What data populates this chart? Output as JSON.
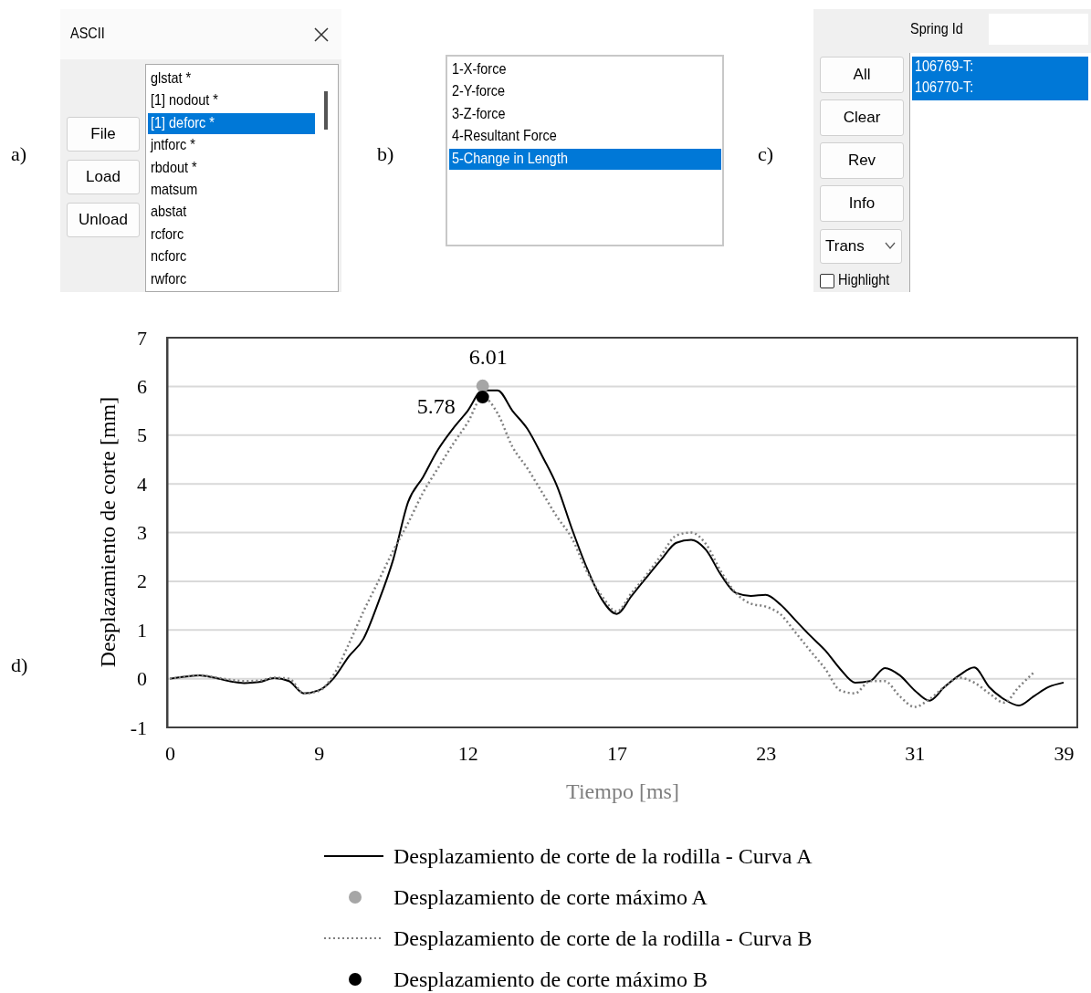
{
  "chart_data": [
    {
      "type": "other",
      "title": "ASCII",
      "annotations": [
        "a)",
        "File",
        "Load",
        "Unload",
        "glstat *",
        "[1] nodout *",
        "[1] deforc *",
        "jntforc *",
        "rbdout *",
        "matsum",
        "abstat",
        "rcforc",
        "ncforc",
        "rwforc"
      ]
    },
    {
      "type": "other",
      "annotations": [
        "b)",
        "1-X-force",
        "2-Y-force",
        "3-Z-force",
        "4-Resultant Force",
        "5-Change in Length"
      ]
    },
    {
      "type": "other",
      "title": "Spring Id",
      "annotations": [
        "c)",
        "All",
        "Clear",
        "Rev",
        "Info",
        "Trans",
        "Highlight",
        "106769-T:",
        "106770-T:"
      ]
    },
    {
      "type": "line",
      "xlabel": "Tiempo [ms]",
      "ylabel": "Desplazamiento de corte [mm]",
      "annotations": [
        "d)"
      ],
      "categories": [
        "0",
        null,
        null,
        null,
        null,
        null,
        null,
        null,
        null,
        null,
        "9",
        null,
        null,
        null,
        null,
        null,
        null,
        null,
        null,
        null,
        "12",
        null,
        null,
        null,
        null,
        null,
        null,
        null,
        null,
        null,
        "17",
        null,
        null,
        null,
        null,
        null,
        null,
        null,
        null,
        null,
        "23",
        null,
        null,
        null,
        null,
        null,
        null,
        null,
        null,
        null,
        "31",
        null,
        null,
        null,
        null,
        null,
        null,
        null,
        null,
        null,
        "39"
      ],
      "ylim": [
        -1,
        7
      ],
      "yticks": [
        -1,
        0,
        1,
        2,
        3,
        4,
        5,
        6,
        7
      ],
      "grid": "y",
      "legend": "bottom",
      "series": [
        {
          "name": "Desplazamiento de corte de la rodilla - Curva A",
          "type": "line",
          "line_style": "solid",
          "color": "#000000",
          "values": [
            0,
            0.04,
            0.07,
            0.02,
            -0.05,
            -0.09,
            -0.07,
            0.01,
            -0.05,
            -0.3,
            -0.24,
            0.01,
            0.45,
            0.82,
            1.57,
            2.45,
            3.63,
            4.14,
            4.7,
            5.13,
            5.5,
            5.92,
            5.92,
            5.5,
            5.13,
            4.57,
            3.95,
            3.07,
            2.27,
            1.63,
            1.33,
            1.7,
            2.08,
            2.45,
            2.79,
            2.85,
            2.64,
            2.13,
            1.76,
            1.7,
            1.72,
            1.52,
            1.2,
            0.88,
            0.58,
            0.2,
            -0.08,
            -0.05,
            0.22,
            0.07,
            -0.24,
            -0.45,
            -0.17,
            0.07,
            0.23,
            -0.17,
            -0.42,
            -0.55,
            -0.36,
            -0.17,
            -0.08
          ]
        },
        {
          "name": "Desplazamiento de corte máximo A",
          "type": "scatter",
          "marker": "circle",
          "color": "#a6a6a6",
          "values": [
            null,
            null,
            null,
            null,
            null,
            null,
            null,
            null,
            null,
            null,
            null,
            null,
            null,
            null,
            null,
            null,
            null,
            null,
            null,
            null,
            null,
            6.01,
            null,
            null,
            null,
            null,
            null,
            null,
            null,
            null,
            null,
            null,
            null,
            null,
            null,
            null,
            null,
            null,
            null,
            null,
            null,
            null,
            null,
            null,
            null,
            null,
            null,
            null,
            null,
            null,
            null,
            null,
            null,
            null,
            null,
            null,
            null,
            null,
            null,
            null,
            null
          ],
          "value_labels": [
            null,
            null,
            null,
            null,
            null,
            null,
            null,
            null,
            null,
            null,
            null,
            null,
            null,
            null,
            null,
            null,
            null,
            null,
            null,
            null,
            null,
            "6.01",
            null,
            null,
            null,
            null,
            null,
            null,
            null,
            null,
            null,
            null,
            null,
            null,
            null,
            null,
            null,
            null,
            null,
            null,
            null,
            null,
            null,
            null,
            null,
            null,
            null,
            null,
            null,
            null,
            null,
            null,
            null,
            null,
            null,
            null,
            null,
            null,
            null,
            null,
            null
          ]
        },
        {
          "name": "Desplazamiento de corte de la rodilla - Curva B",
          "type": "line",
          "line_style": "dotted",
          "color": "#808080",
          "values": [
            0,
            0.04,
            0.07,
            0.03,
            -0.02,
            -0.05,
            -0.04,
            0.02,
            0,
            -0.3,
            -0.25,
            0.08,
            0.7,
            1.38,
            2.0,
            2.63,
            3.2,
            3.82,
            4.32,
            4.81,
            5.26,
            5.78,
            5.45,
            4.76,
            4.32,
            3.82,
            3.32,
            2.88,
            2.2,
            1.7,
            1.38,
            1.76,
            2.13,
            2.54,
            2.94,
            3.0,
            2.76,
            2.2,
            1.76,
            1.54,
            1.48,
            1.32,
            0.95,
            0.57,
            0.2,
            -0.24,
            -0.3,
            -0.05,
            -0.05,
            -0.36,
            -0.58,
            -0.42,
            -0.17,
            0.02,
            -0.08,
            -0.3,
            -0.49,
            -0.17,
            0.13,
            null,
            null
          ]
        },
        {
          "name": "Desplazamiento de corte máximo B",
          "type": "scatter",
          "marker": "circle",
          "color": "#000000",
          "values": [
            null,
            null,
            null,
            null,
            null,
            null,
            null,
            null,
            null,
            null,
            null,
            null,
            null,
            null,
            null,
            null,
            null,
            null,
            null,
            null,
            null,
            5.78,
            null,
            null,
            null,
            null,
            null,
            null,
            null,
            null,
            null,
            null,
            null,
            null,
            null,
            null,
            null,
            null,
            null,
            null,
            null,
            null,
            null,
            null,
            null,
            null,
            null,
            null,
            null,
            null,
            null,
            null,
            null,
            null,
            null,
            null,
            null,
            null,
            null,
            null,
            null
          ],
          "value_labels": [
            null,
            null,
            null,
            null,
            null,
            null,
            null,
            null,
            null,
            null,
            null,
            null,
            null,
            null,
            null,
            null,
            null,
            null,
            null,
            null,
            null,
            "5.78",
            null,
            null,
            null,
            null,
            null,
            null,
            null,
            null,
            null,
            null,
            null,
            null,
            null,
            null,
            null,
            null,
            null,
            null,
            null,
            null,
            null,
            null,
            null,
            null,
            null,
            null,
            null,
            null,
            null,
            null,
            null,
            null,
            null,
            null,
            null,
            null,
            null,
            null,
            null
          ]
        }
      ]
    }
  ]
}
